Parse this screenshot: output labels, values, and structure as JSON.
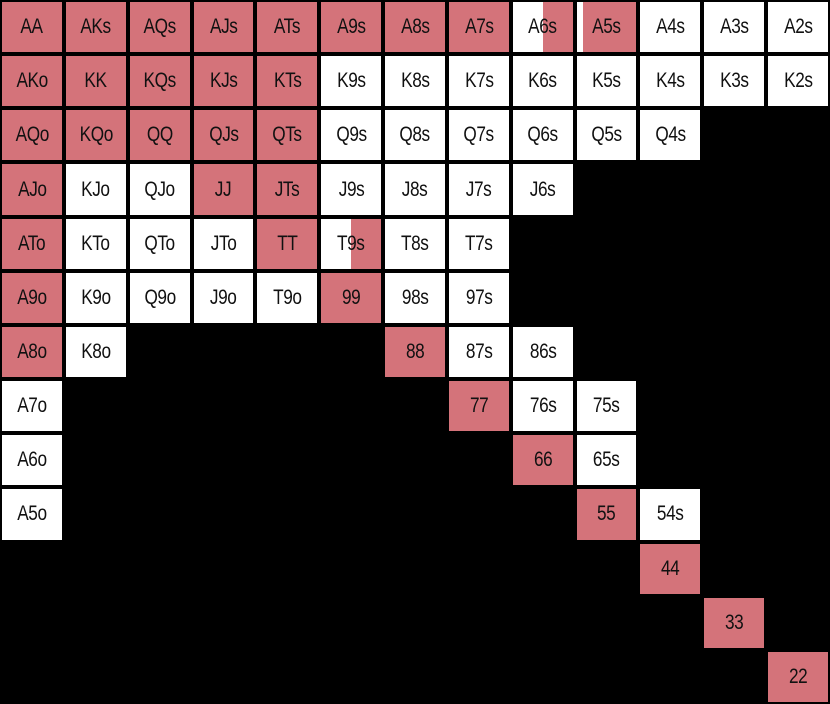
{
  "colors": {
    "raise": "#d4737a",
    "fold": "#ffffff",
    "background": "#000000",
    "text": "#111111"
  },
  "grid": {
    "rows": [
      [
        "AA",
        "AKs",
        "AQs",
        "AJs",
        "ATs",
        "A9s",
        "A8s",
        "A7s",
        "A6s",
        "A5s",
        "A4s",
        "A3s",
        "A2s"
      ],
      [
        "AKo",
        "KK",
        "KQs",
        "KJs",
        "KTs",
        "K9s",
        "K8s",
        "K7s",
        "K6s",
        "K5s",
        "K4s",
        "K3s",
        "K2s"
      ],
      [
        "AQo",
        "KQo",
        "QQ",
        "QJs",
        "QTs",
        "Q9s",
        "Q8s",
        "Q7s",
        "Q6s",
        "Q5s",
        "Q4s",
        "",
        ""
      ],
      [
        "AJo",
        "KJo",
        "QJo",
        "JJ",
        "JTs",
        "J9s",
        "J8s",
        "J7s",
        "J6s",
        "",
        "",
        "",
        ""
      ],
      [
        "ATo",
        "KTo",
        "QTo",
        "JTo",
        "TT",
        "T9s",
        "T8s",
        "T7s",
        "",
        "",
        "",
        "",
        ""
      ],
      [
        "A9o",
        "K9o",
        "Q9o",
        "J9o",
        "T9o",
        "99",
        "98s",
        "97s",
        "",
        "",
        "",
        "",
        ""
      ],
      [
        "A8o",
        "K8o",
        "",
        "",
        "",
        "",
        "88",
        "87s",
        "86s",
        "",
        "",
        "",
        ""
      ],
      [
        "A7o",
        "",
        "",
        "",
        "",
        "",
        "",
        "77",
        "76s",
        "75s",
        "",
        "",
        ""
      ],
      [
        "A6o",
        "",
        "",
        "",
        "",
        "",
        "",
        "",
        "66",
        "65s",
        "",
        "",
        ""
      ],
      [
        "A5o",
        "",
        "",
        "",
        "",
        "",
        "",
        "",
        "",
        "55",
        "54s",
        "",
        ""
      ],
      [
        "",
        "",
        "",
        "",
        "",
        "",
        "",
        "",
        "",
        "",
        "44",
        "",
        ""
      ],
      [
        "",
        "",
        "",
        "",
        "",
        "",
        "",
        "",
        "",
        "",
        "",
        "33",
        ""
      ],
      [
        "",
        "",
        "",
        "",
        "",
        "",
        "",
        "",
        "",
        "",
        "",
        "",
        "22"
      ]
    ],
    "raise_fraction": [
      [
        1,
        1,
        1,
        1,
        1,
        1,
        1,
        1,
        0.5,
        0.9,
        0,
        0,
        0
      ],
      [
        1,
        1,
        1,
        1,
        1,
        0,
        0,
        0,
        0,
        0,
        0,
        0,
        0
      ],
      [
        1,
        1,
        1,
        1,
        1,
        0,
        0,
        0,
        0,
        0,
        0,
        0,
        0
      ],
      [
        1,
        0,
        0,
        1,
        1,
        0,
        0,
        0,
        0,
        0,
        0,
        0,
        0
      ],
      [
        1,
        0,
        0,
        0,
        1,
        0.5,
        0,
        0,
        0,
        0,
        0,
        0,
        0
      ],
      [
        1,
        0,
        0,
        0,
        0,
        1,
        0,
        0,
        0,
        0,
        0,
        0,
        0
      ],
      [
        1,
        0,
        0,
        0,
        0,
        0,
        1,
        0,
        0,
        0,
        0,
        0,
        0
      ],
      [
        0,
        0,
        0,
        0,
        0,
        0,
        0,
        1,
        0,
        0,
        0,
        0,
        0
      ],
      [
        0,
        0,
        0,
        0,
        0,
        0,
        0,
        0,
        1,
        0,
        0,
        0,
        0
      ],
      [
        0,
        0,
        0,
        0,
        0,
        0,
        0,
        0,
        0,
        1,
        0,
        0,
        0
      ],
      [
        0,
        0,
        0,
        0,
        0,
        0,
        0,
        0,
        0,
        0,
        1,
        0,
        0
      ],
      [
        0,
        0,
        0,
        0,
        0,
        0,
        0,
        0,
        0,
        0,
        0,
        1,
        0
      ],
      [
        0,
        0,
        0,
        0,
        0,
        0,
        0,
        0,
        0,
        0,
        0,
        0,
        1
      ]
    ]
  }
}
